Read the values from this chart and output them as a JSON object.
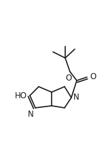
{
  "bg_color": "#ffffff",
  "line_color": "#1a1a1a",
  "line_width": 1.2,
  "font_size": 8.5,
  "ho_label": "HO",
  "n_label": "N",
  "o_label": "O",
  "o2_label": "O"
}
